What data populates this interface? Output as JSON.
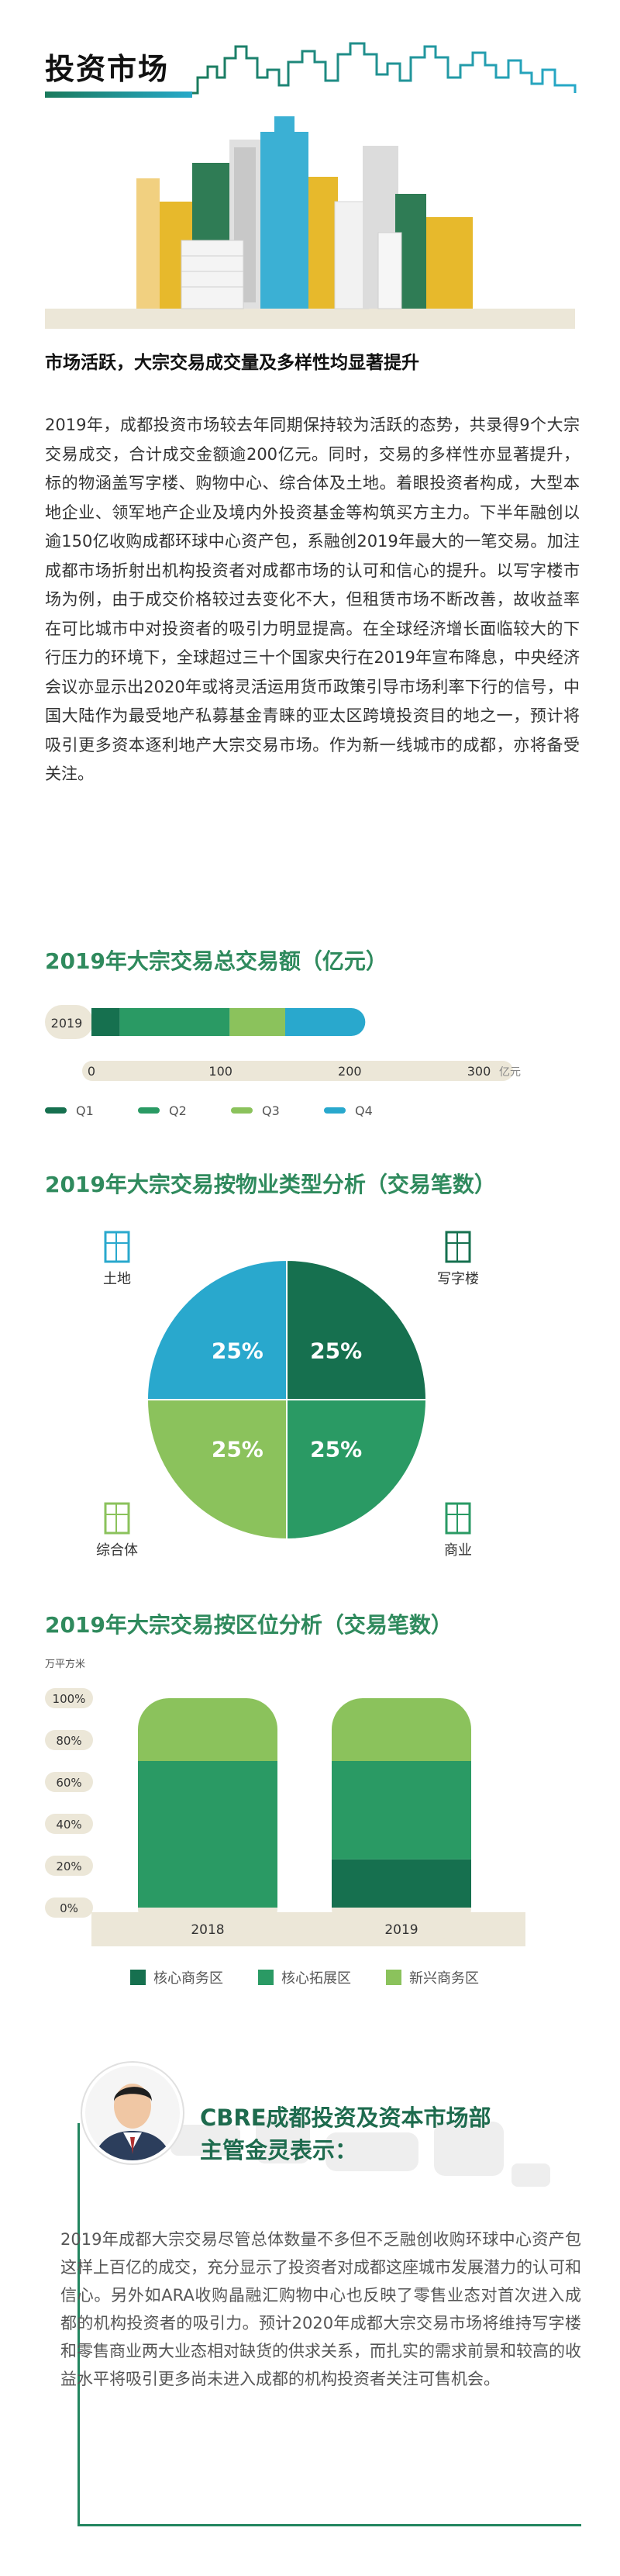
{
  "header": {
    "title": "投资市场"
  },
  "article": {
    "subtitle": "市场活跃，大宗交易成交量及多样性均显著提升",
    "body": "2019年，成都投资市场较去年同期保持较为活跃的态势，共录得9个大宗交易成交，合计成交金额逾200亿元。同时，交易的多样性亦显著提升，标的物涵盖写字楼、购物中心、综合体及土地。着眼投资者构成，大型本地企业、领军地产企业及境内外投资基金等构筑买方主力。下半年融创以逾150亿收购成都环球中心资产包，系融创2019年最大的一笔交易。加注成都市场折射出机构投资者对成都市场的认可和信心的提升。以写字楼市场为例，由于成交价格较过去变化不大，但租赁市场不断改善，故收益率在可比城市中对投资者的吸引力明显提高。在全球经济增长面临较大的下行压力的环境下，全球超过三十个国家央行在2019年宣布降息，中央经济会议亦显示出2020年或将灵活运用货币政策引导市场利率下行的信号，中国大陆作为最受地产私募基金青睐的亚太区跨境投资目的地之一，预计将吸引更多资本逐利地产大宗交易市场。作为新一线城市的成都，亦将备受关注。"
  },
  "chart_data": [
    {
      "type": "bar",
      "orientation": "horizontal",
      "stacked": true,
      "title": "2019年大宗交易总交易额（亿元）",
      "categories": [
        "2019"
      ],
      "series": [
        {
          "name": "Q1",
          "values": [
            22
          ],
          "color": "#16704f"
        },
        {
          "name": "Q2",
          "values": [
            85
          ],
          "color": "#2a9a64"
        },
        {
          "name": "Q3",
          "values": [
            43
          ],
          "color": "#8bc25c"
        },
        {
          "name": "Q4",
          "values": [
            62
          ],
          "color": "#29a8cd"
        }
      ],
      "xlim": [
        0,
        300
      ],
      "xticks": [
        "0",
        "100",
        "200",
        "300"
      ],
      "unit": "亿元",
      "legend": "bottom"
    },
    {
      "type": "pie",
      "title": "2019年大宗交易按物业类型分析（交易笔数）",
      "slices": [
        {
          "label": "写字楼",
          "value": 25,
          "display": "25%",
          "color": "#16704f",
          "icon": "office-building-icon"
        },
        {
          "label": "商业",
          "value": 25,
          "display": "25%",
          "color": "#2a9a64",
          "icon": "storefront-icon"
        },
        {
          "label": "综合体",
          "value": 25,
          "display": "25%",
          "color": "#8bc25c",
          "icon": "complex-buildings-icon"
        },
        {
          "label": "土地",
          "value": 25,
          "display": "25%",
          "color": "#29a8cd",
          "icon": "land-plot-icon"
        }
      ]
    },
    {
      "type": "bar",
      "stacked": true,
      "title": "2019年大宗交易按区位分析（交易笔数）",
      "ylabel": "万平方米",
      "categories": [
        "2018",
        "2019"
      ],
      "series": [
        {
          "name": "核心商务区",
          "values": [
            0,
            23
          ],
          "color": "#16704f"
        },
        {
          "name": "核心拓展区",
          "values": [
            70,
            47
          ],
          "color": "#2a9a64"
        },
        {
          "name": "新兴商务区",
          "values": [
            30,
            30
          ],
          "color": "#8bc25c"
        }
      ],
      "ylim": [
        0,
        100
      ],
      "yticks": [
        "100%",
        "80%",
        "60%",
        "40%",
        "20%",
        "0%"
      ],
      "legend": "bottom"
    }
  ],
  "quote": {
    "title_line1": "CBRE成都投资及资本市场部",
    "title_line2": "主管金灵表示：",
    "text": "2019年成都大宗交易尽管总体数量不多但不乏融创收购环球中心资产包这样上百亿的成交，充分显示了投资者对成都这座城市发展潜力的认可和信心。另外如ARA收购晶融汇购物中心也反映了零售业态对首次进入成都的机构投资者的吸引力。预计2020年成都大宗交易市场将维持写字楼和零售商业两大业态相对缺货的供求关系，而扎实的需求前景和较高的收益水平将吸引更多尚未进入成都的机构投资者关注可售机会。"
  }
}
